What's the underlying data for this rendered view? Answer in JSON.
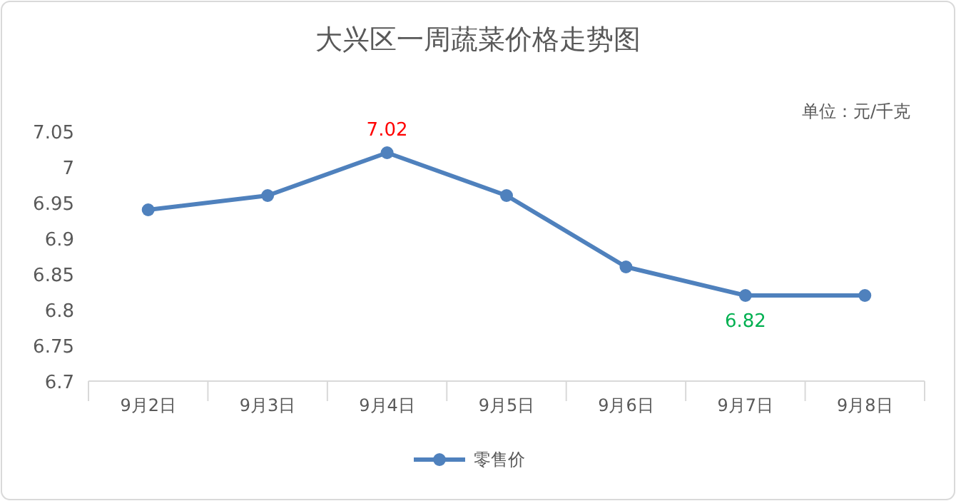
{
  "chart_data": {
    "type": "line",
    "title": "大兴区一周蔬菜价格走势图",
    "categories": [
      "9月2日",
      "9月3日",
      "9月4日",
      "9月5日",
      "9月6日",
      "9月7日",
      "9月8日"
    ],
    "series": [
      {
        "name": "零售价",
        "color": "#4f81bd",
        "values": [
          6.94,
          6.96,
          7.02,
          6.96,
          6.86,
          6.82,
          6.82
        ],
        "value_labels": [
          null,
          null,
          "7.02",
          null,
          null,
          "6.82",
          null
        ]
      }
    ],
    "ylim": [
      6.7,
      7.05
    ],
    "yticks": [
      6.7,
      6.75,
      6.8,
      6.85,
      6.9,
      6.95,
      7,
      7.05
    ],
    "annotations": [
      "单位：元/千克"
    ],
    "marker": "circle",
    "legend": "bottom",
    "grid": false
  }
}
